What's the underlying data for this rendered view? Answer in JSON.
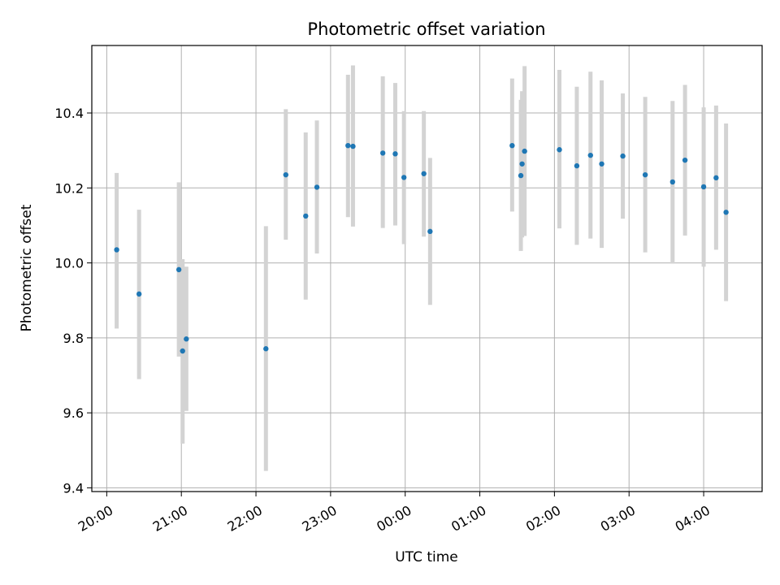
{
  "chart_data": {
    "type": "scatter",
    "title": "Photometric offset variation",
    "xlabel": "UTC time",
    "ylabel": "Photometric offset",
    "xlim": [
      "19:48",
      "04:47"
    ],
    "ylim": [
      9.39,
      10.58
    ],
    "x_ticks": [
      "20:00",
      "21:00",
      "22:00",
      "23:00",
      "00:00",
      "01:00",
      "02:00",
      "03:00",
      "04:00"
    ],
    "y_ticks": [
      9.4,
      9.6,
      9.8,
      10.0,
      10.2,
      10.4
    ],
    "grid": true,
    "colors": {
      "point": "#1f77b4",
      "errorbar": "#d3d3d3",
      "grid": "#b0b0b0"
    },
    "points": [
      {
        "x": "20:08",
        "y": 10.035,
        "ylo": 9.825,
        "yhi": 10.24
      },
      {
        "x": "20:26",
        "y": 9.917,
        "ylo": 9.69,
        "yhi": 10.142
      },
      {
        "x": "20:58",
        "y": 9.982,
        "ylo": 9.75,
        "yhi": 10.215
      },
      {
        "x": "21:01",
        "y": 9.765,
        "ylo": 9.518,
        "yhi": 10.01
      },
      {
        "x": "21:04",
        "y": 9.797,
        "ylo": 9.605,
        "yhi": 9.99
      },
      {
        "x": "22:08",
        "y": 9.771,
        "ylo": 9.445,
        "yhi": 10.098
      },
      {
        "x": "22:24",
        "y": 10.235,
        "ylo": 10.062,
        "yhi": 10.41
      },
      {
        "x": "22:40",
        "y": 10.125,
        "ylo": 9.902,
        "yhi": 10.348
      },
      {
        "x": "22:49",
        "y": 10.202,
        "ylo": 10.025,
        "yhi": 10.38
      },
      {
        "x": "23:14",
        "y": 10.313,
        "ylo": 10.122,
        "yhi": 10.502
      },
      {
        "x": "23:18",
        "y": 10.311,
        "ylo": 10.097,
        "yhi": 10.527
      },
      {
        "x": "23:42",
        "y": 10.293,
        "ylo": 10.093,
        "yhi": 10.498
      },
      {
        "x": "23:52",
        "y": 10.291,
        "ylo": 10.1,
        "yhi": 10.48
      },
      {
        "x": "23:59",
        "y": 10.228,
        "ylo": 10.05,
        "yhi": 10.405
      },
      {
        "x": "00:15",
        "y": 10.238,
        "ylo": 10.07,
        "yhi": 10.405
      },
      {
        "x": "00:20",
        "y": 10.084,
        "ylo": 9.888,
        "yhi": 10.28
      },
      {
        "x": "01:26",
        "y": 10.313,
        "ylo": 10.137,
        "yhi": 10.492
      },
      {
        "x": "01:33",
        "y": 10.233,
        "ylo": 10.032,
        "yhi": 10.435
      },
      {
        "x": "01:34",
        "y": 10.264,
        "ylo": 10.068,
        "yhi": 10.458
      },
      {
        "x": "01:36",
        "y": 10.298,
        "ylo": 10.072,
        "yhi": 10.525
      },
      {
        "x": "02:04",
        "y": 10.302,
        "ylo": 10.092,
        "yhi": 10.515
      },
      {
        "x": "02:18",
        "y": 10.259,
        "ylo": 10.048,
        "yhi": 10.47
      },
      {
        "x": "02:29",
        "y": 10.287,
        "ylo": 10.065,
        "yhi": 10.51
      },
      {
        "x": "02:38",
        "y": 10.264,
        "ylo": 10.04,
        "yhi": 10.487
      },
      {
        "x": "02:55",
        "y": 10.285,
        "ylo": 10.118,
        "yhi": 10.452
      },
      {
        "x": "03:13",
        "y": 10.235,
        "ylo": 10.028,
        "yhi": 10.443
      },
      {
        "x": "03:35",
        "y": 10.216,
        "ylo": 9.998,
        "yhi": 10.432
      },
      {
        "x": "03:45",
        "y": 10.274,
        "ylo": 10.073,
        "yhi": 10.475
      },
      {
        "x": "04:00",
        "y": 10.203,
        "ylo": 9.99,
        "yhi": 10.415
      },
      {
        "x": "04:10",
        "y": 10.227,
        "ylo": 10.035,
        "yhi": 10.42
      },
      {
        "x": "04:18",
        "y": 10.135,
        "ylo": 9.898,
        "yhi": 10.372
      }
    ]
  }
}
